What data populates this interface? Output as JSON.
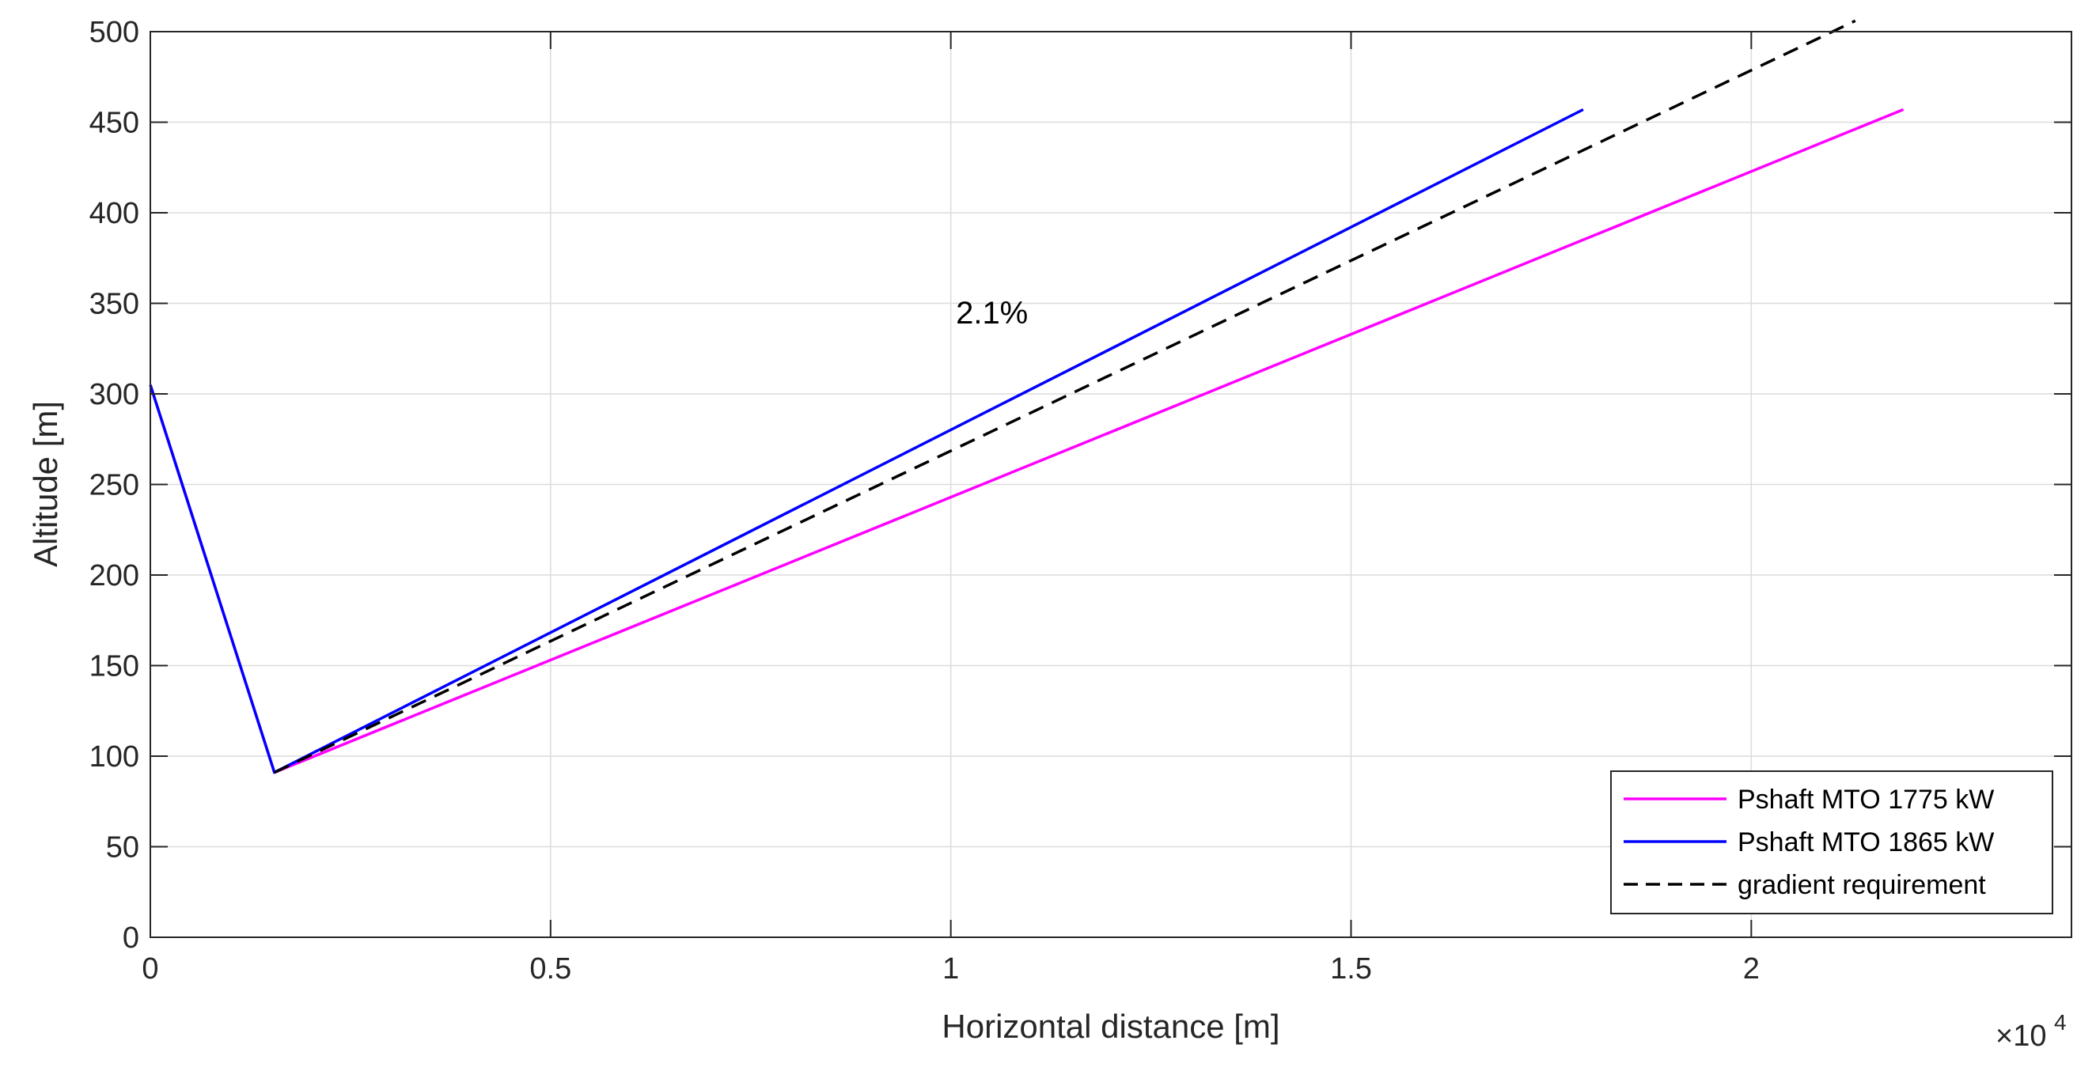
{
  "chart_data": {
    "type": "line",
    "title": "",
    "xlabel": "Horizontal distance [m]",
    "ylabel": "Altitude [m]",
    "x_exponent_label": "×10",
    "x_exponent_power": "4",
    "xlim": [
      0,
      24000
    ],
    "ylim": [
      0,
      500
    ],
    "x_ticks": [
      0,
      5000,
      10000,
      15000,
      20000
    ],
    "x_tick_labels": [
      "0",
      "0.5",
      "1",
      "1.5",
      "2"
    ],
    "y_ticks": [
      0,
      50,
      100,
      150,
      200,
      250,
      300,
      350,
      400,
      450,
      500
    ],
    "y_tick_labels": [
      "0",
      "50",
      "100",
      "150",
      "200",
      "250",
      "300",
      "350",
      "400",
      "450",
      "500"
    ],
    "grid": true,
    "legend_position": "bottom-right",
    "annotation": {
      "text": "2.1%",
      "x": 10000,
      "y": 345
    },
    "series": [
      {
        "name": "Pshaft MTO 1775 kW",
        "color": "#ff00ff",
        "style": "solid",
        "x": [
          0,
          1550,
          21900
        ],
        "y": [
          305,
          91,
          457
        ]
      },
      {
        "name": "Pshaft MTO 1865 kW",
        "color": "#0000ff",
        "style": "solid",
        "x": [
          0,
          1550,
          17900
        ],
        "y": [
          305,
          91,
          457
        ]
      },
      {
        "name": "gradient requirement",
        "color": "#000000",
        "style": "dashed",
        "x": [
          1550,
          21300
        ],
        "y": [
          91,
          506
        ]
      }
    ]
  }
}
